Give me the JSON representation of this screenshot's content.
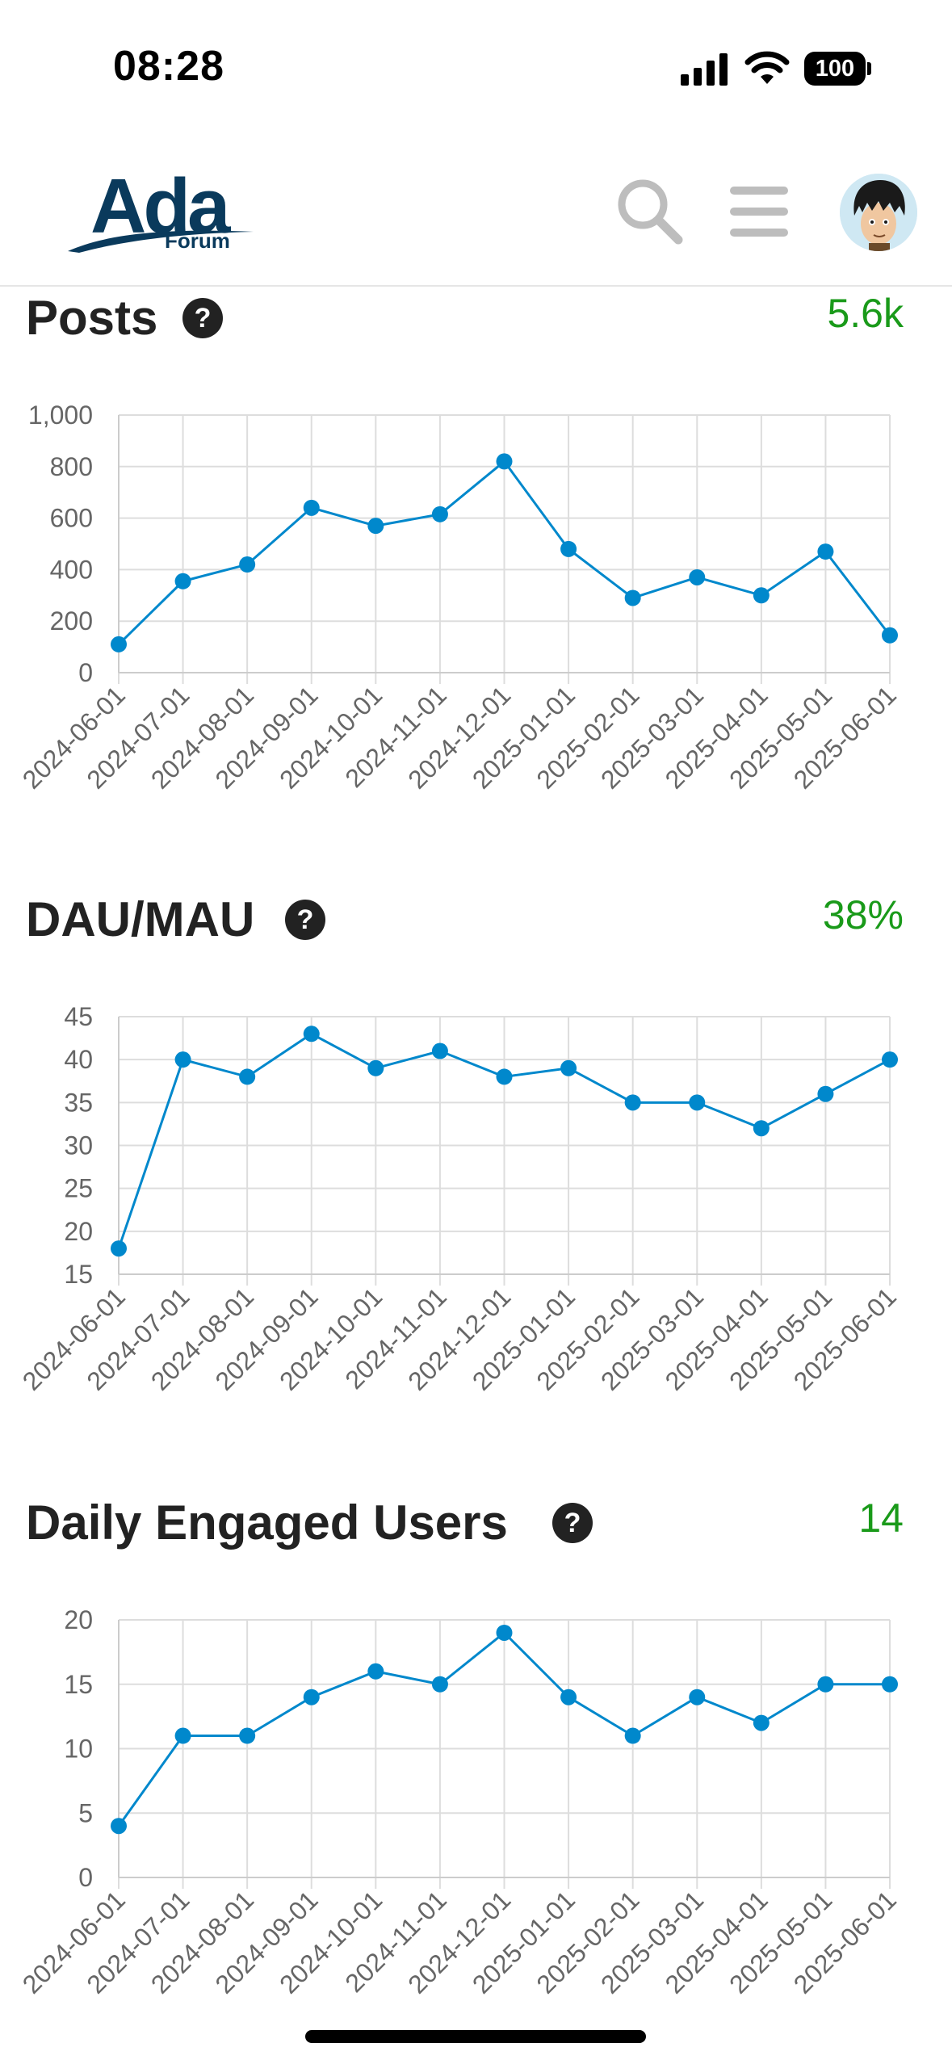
{
  "status_bar": {
    "time": "08:28",
    "battery": "100"
  },
  "header": {
    "logo_text": "Ada",
    "logo_sub": "Forum",
    "icons": {
      "search": "search-icon",
      "menu": "hamburger-menu-icon",
      "avatar": "user-avatar"
    }
  },
  "colors": {
    "accent": "#0088cc",
    "positive": "#1a9a1a",
    "logo": "#0a3a5c"
  },
  "sections": [
    {
      "title": "Posts",
      "value": "5.6k",
      "help": "?"
    },
    {
      "title": "DAU/MAU",
      "value": "38%",
      "help": "?"
    },
    {
      "title": "Daily Engaged Users",
      "value": "14",
      "help": "?"
    }
  ],
  "chart_data": [
    {
      "type": "line",
      "title": "Posts",
      "xlabel": "",
      "ylabel": "",
      "categories": [
        "2024-06-01",
        "2024-07-01",
        "2024-08-01",
        "2024-09-01",
        "2024-10-01",
        "2024-11-01",
        "2024-12-01",
        "2025-01-01",
        "2025-02-01",
        "2025-03-01",
        "2025-04-01",
        "2025-05-01",
        "2025-06-01"
      ],
      "values": [
        110,
        355,
        420,
        640,
        570,
        615,
        820,
        480,
        290,
        370,
        300,
        470,
        145
      ],
      "yticks": [
        "0",
        "200",
        "400",
        "600",
        "800",
        "1,000"
      ],
      "ytick_values": [
        0,
        200,
        400,
        600,
        800,
        1000
      ],
      "ylim": [
        0,
        1000
      ],
      "grid": true
    },
    {
      "type": "line",
      "title": "DAU/MAU",
      "xlabel": "",
      "ylabel": "",
      "categories": [
        "2024-06-01",
        "2024-07-01",
        "2024-08-01",
        "2024-09-01",
        "2024-10-01",
        "2024-11-01",
        "2024-12-01",
        "2025-01-01",
        "2025-02-01",
        "2025-03-01",
        "2025-04-01",
        "2025-05-01",
        "2025-06-01"
      ],
      "values": [
        18,
        40,
        38,
        43,
        39,
        41,
        38,
        39,
        35,
        35,
        32,
        36,
        40
      ],
      "yticks": [
        "15",
        "20",
        "25",
        "30",
        "35",
        "40",
        "45"
      ],
      "ytick_values": [
        15,
        20,
        25,
        30,
        35,
        40,
        45
      ],
      "ylim": [
        15,
        45
      ],
      "grid": true
    },
    {
      "type": "line",
      "title": "Daily Engaged Users",
      "xlabel": "",
      "ylabel": "",
      "categories": [
        "2024-06-01",
        "2024-07-01",
        "2024-08-01",
        "2024-09-01",
        "2024-10-01",
        "2024-11-01",
        "2024-12-01",
        "2025-01-01",
        "2025-02-01",
        "2025-03-01",
        "2025-04-01",
        "2025-05-01",
        "2025-06-01"
      ],
      "values": [
        4,
        11,
        11,
        14,
        16,
        15,
        19,
        14,
        11,
        14,
        12,
        15,
        15
      ],
      "yticks": [
        "0",
        "5",
        "10",
        "15",
        "20"
      ],
      "ytick_values": [
        0,
        5,
        10,
        15,
        20
      ],
      "ylim": [
        0,
        20
      ],
      "grid": true
    }
  ]
}
